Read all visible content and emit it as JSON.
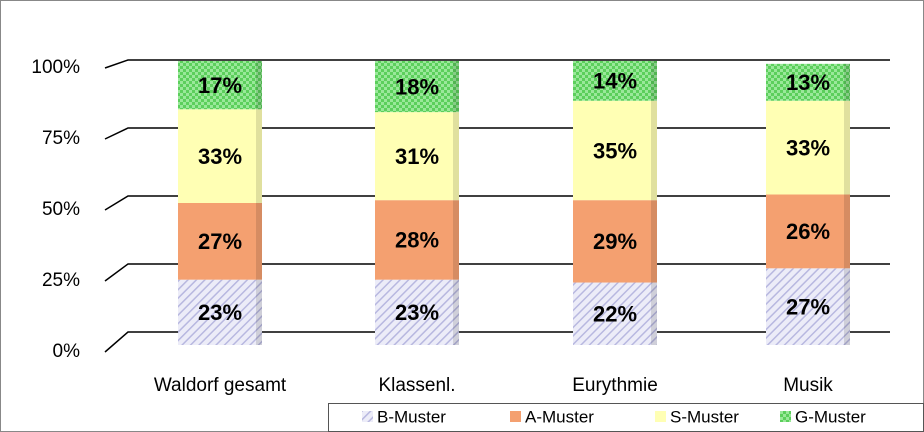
{
  "chart_data": {
    "type": "stacked_bar",
    "categories": [
      "Waldorf gesamt",
      "Klassenl.",
      "Eurythmie",
      "Musik"
    ],
    "series": [
      {
        "name": "B-Muster",
        "color": "#c8c8ec",
        "values": [
          23,
          23,
          22,
          27
        ],
        "value_labels": [
          "23%",
          "23%",
          "22%",
          "27%"
        ]
      },
      {
        "name": "A-Muster",
        "color": "#f4a070",
        "values": [
          27,
          28,
          29,
          26
        ],
        "value_labels": [
          "27%",
          "28%",
          "29%",
          "26%"
        ]
      },
      {
        "name": "S-Muster",
        "color": "#ffffb4",
        "values": [
          33,
          31,
          35,
          33
        ],
        "value_labels": [
          "33%",
          "31%",
          "35%",
          "33%"
        ]
      },
      {
        "name": "G-Muster",
        "color": "#7ee07e",
        "values": [
          17,
          18,
          14,
          13
        ],
        "value_labels": [
          "17%",
          "18%",
          "14%",
          "13%"
        ]
      }
    ],
    "ylim": [
      0,
      100
    ],
    "yticks": [
      {
        "value": 0,
        "label": "0%"
      },
      {
        "value": 25,
        "label": "25%"
      },
      {
        "value": 50,
        "label": "50%"
      },
      {
        "value": 75,
        "label": "75%"
      },
      {
        "value": 100,
        "label": "100%"
      }
    ],
    "grid": true
  }
}
